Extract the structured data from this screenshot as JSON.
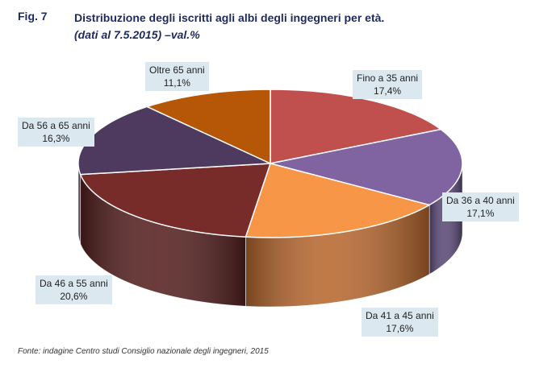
{
  "figure": {
    "number": "Fig. 7",
    "title": "Distribuzione degli iscritti agli albi degli ingegneri per età.",
    "subtitle": "(dati al 7.5.2015) –val.%",
    "source": "Fonte: indagine Centro studi Consiglio nazionale degli ingegneri, 2015"
  },
  "chart_data": {
    "type": "pie",
    "title": "Distribuzione degli iscritti agli albi degli ingegneri per età.",
    "unit": "%",
    "categories": [
      "Fino a 35 anni",
      "Da 36 a 40 anni",
      "Da 41 a 45 anni",
      "Da 46 a 55 anni",
      "Da 56 a 65 anni",
      "Oltre 65 anni"
    ],
    "values": [
      17.4,
      17.1,
      17.6,
      20.6,
      16.3,
      11.1
    ],
    "value_labels": [
      "17,4%",
      "17,1%",
      "17,6%",
      "20,6%",
      "16,3%",
      "11,1%"
    ],
    "colors": [
      "#c0504d",
      "#8064a2",
      "#f79646",
      "#772c2a",
      "#4e3a5f",
      "#b65708"
    ],
    "side_colors": [
      "#8e3735",
      "#5b4876",
      "#b8682f",
      "#55201f",
      "#372a44",
      "#844006"
    ]
  }
}
